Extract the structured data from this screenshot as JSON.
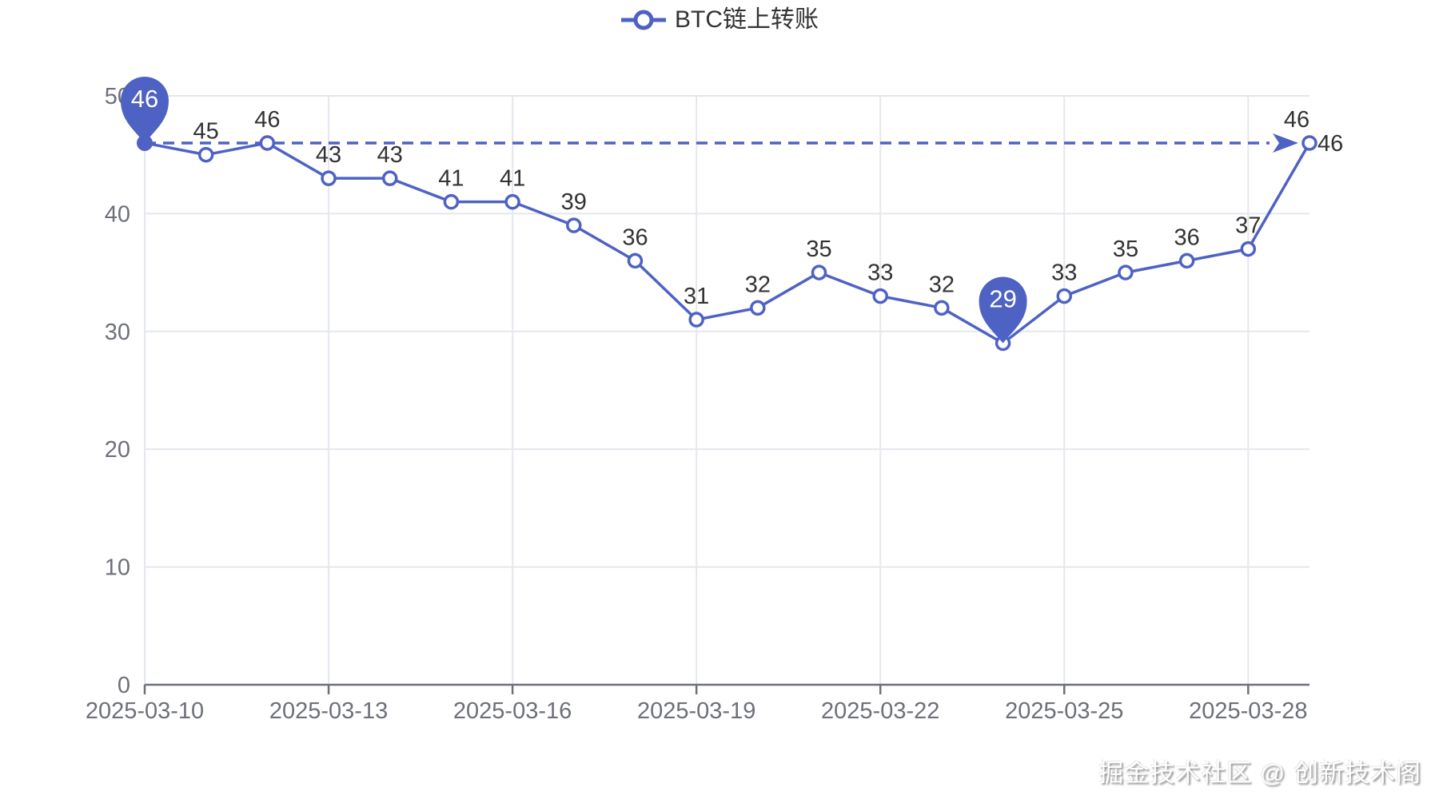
{
  "legend": {
    "label": "BTC链上转账"
  },
  "watermark": {
    "text": "掘金技术社区 @ 创新技术阁"
  },
  "chart_data": {
    "type": "line",
    "title": "",
    "series_name": "BTC链上转账",
    "x": [
      "2025-03-10",
      "2025-03-11",
      "2025-03-12",
      "2025-03-13",
      "2025-03-14",
      "2025-03-15",
      "2025-03-16",
      "2025-03-17",
      "2025-03-18",
      "2025-03-19",
      "2025-03-20",
      "2025-03-21",
      "2025-03-22",
      "2025-03-23",
      "2025-03-24",
      "2025-03-25",
      "2025-03-26",
      "2025-03-27",
      "2025-03-28",
      "2025-03-29"
    ],
    "values": [
      46,
      45,
      46,
      43,
      43,
      41,
      41,
      39,
      36,
      31,
      32,
      35,
      33,
      32,
      29,
      33,
      35,
      36,
      37,
      46
    ],
    "x_tick_labels": [
      "2025-03-10",
      "2025-03-13",
      "2025-03-16",
      "2025-03-19",
      "2025-03-22",
      "2025-03-25",
      "2025-03-28"
    ],
    "y_ticks": [
      0,
      10,
      20,
      30,
      40,
      50
    ],
    "ylim": [
      0,
      50
    ],
    "grid": true,
    "legend_position": "top-center",
    "mark_points": [
      {
        "type": "max",
        "value": 46,
        "index": 0
      },
      {
        "type": "min",
        "value": 29,
        "index": 14
      }
    ],
    "mark_line": {
      "type": "max",
      "value": 46,
      "label": "46",
      "style": "dashed-arrow"
    },
    "colors": {
      "series": "#4e62c4",
      "grid": "#e4e7ee",
      "axis_line": "#6e7079",
      "axis_label": "#6e7079",
      "data_label": "#333333",
      "pin_text": "#ffffff",
      "background": "#ffffff"
    }
  }
}
